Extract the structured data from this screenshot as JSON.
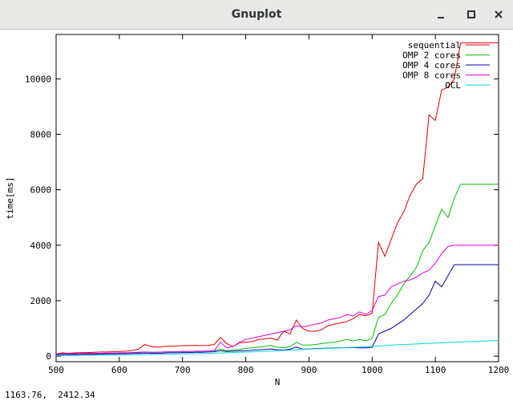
{
  "window": {
    "title": "Gnuplot",
    "controls": [
      "minimize-icon",
      "maximize-icon",
      "close-icon"
    ]
  },
  "status": {
    "coordinates": "1163.76,  2412.34"
  },
  "chart_data": {
    "type": "line",
    "title": "",
    "xlabel": "N",
    "ylabel": "time[ms]",
    "xlim": [
      500,
      1200
    ],
    "ylim": [
      -200,
      11600
    ],
    "grid": false,
    "legend_position": "top-right",
    "xticks": [
      500,
      600,
      700,
      800,
      900,
      1000,
      1100,
      1200
    ],
    "yticks": [
      0,
      2000,
      4000,
      6000,
      8000,
      10000
    ],
    "x": [
      500,
      510,
      520,
      530,
      540,
      550,
      560,
      570,
      580,
      590,
      600,
      610,
      620,
      630,
      640,
      650,
      660,
      670,
      680,
      690,
      700,
      710,
      720,
      730,
      740,
      750,
      760,
      770,
      780,
      790,
      800,
      810,
      820,
      830,
      840,
      850,
      860,
      870,
      880,
      890,
      900,
      910,
      920,
      930,
      940,
      950,
      960,
      970,
      980,
      990,
      1000,
      1010,
      1020,
      1030,
      1040,
      1050,
      1060,
      1070,
      1080,
      1090,
      1100,
      1110,
      1120,
      1130,
      1140,
      1150,
      1160,
      1170,
      1180,
      1190,
      1200
    ],
    "series": [
      {
        "name": "sequential",
        "color": "#e00000",
        "values": [
          80,
          120,
          100,
          120,
          130,
          130,
          140,
          150,
          150,
          160,
          170,
          180,
          200,
          250,
          420,
          350,
          320,
          350,
          360,
          360,
          380,
          380,
          390,
          380,
          390,
          420,
          680,
          450,
          350,
          480,
          500,
          520,
          600,
          620,
          650,
          580,
          900,
          800,
          1300,
          1000,
          900,
          900,
          950,
          1100,
          1150,
          1200,
          1250,
          1350,
          1500,
          1450,
          1550,
          4100,
          3600,
          4200,
          4800,
          5200,
          5800,
          6200,
          6400,
          8700,
          8500,
          9600,
          9700,
          10000,
          11300,
          11300,
          11300,
          11300,
          11300,
          11300,
          11300
        ]
      },
      {
        "name": "OMP 2 cores",
        "color": "#00c000",
        "values": [
          60,
          80,
          70,
          80,
          80,
          90,
          90,
          90,
          100,
          100,
          110,
          110,
          120,
          130,
          150,
          140,
          140,
          150,
          160,
          160,
          170,
          170,
          180,
          180,
          190,
          200,
          250,
          200,
          220,
          240,
          280,
          300,
          330,
          350,
          380,
          320,
          300,
          350,
          500,
          400,
          400,
          420,
          450,
          480,
          500,
          550,
          600,
          550,
          600,
          550,
          650,
          1400,
          1500,
          1900,
          2200,
          2600,
          2900,
          3200,
          3800,
          4100,
          4700,
          5300,
          5000,
          5700,
          6200,
          6200,
          6200,
          6200,
          6200,
          6200,
          6200
        ]
      },
      {
        "name": "OMP 4 cores",
        "color": "#0000b0",
        "values": [
          50,
          60,
          60,
          60,
          65,
          70,
          70,
          75,
          80,
          80,
          85,
          90,
          95,
          100,
          110,
          100,
          100,
          110,
          120,
          120,
          130,
          130,
          140,
          140,
          150,
          160,
          200,
          170,
          180,
          190,
          200,
          210,
          230,
          240,
          260,
          230,
          220,
          250,
          330,
          250,
          260,
          270,
          280,
          290,
          300,
          300,
          310,
          310,
          300,
          300,
          320,
          800,
          900,
          1000,
          1150,
          1300,
          1500,
          1700,
          1900,
          2200,
          2700,
          2500,
          2900,
          3300,
          3300,
          3300,
          3300,
          3300,
          3300,
          3300,
          3300
        ]
      },
      {
        "name": "OMP 8 cores",
        "color": "#e000e0",
        "values": [
          70,
          90,
          80,
          90,
          95,
          100,
          100,
          105,
          110,
          110,
          120,
          120,
          130,
          140,
          150,
          140,
          140,
          150,
          160,
          160,
          170,
          170,
          180,
          180,
          190,
          200,
          500,
          300,
          350,
          500,
          600,
          650,
          700,
          750,
          800,
          850,
          900,
          950,
          1100,
          1050,
          1100,
          1150,
          1200,
          1300,
          1350,
          1400,
          1500,
          1450,
          1600,
          1500,
          1650,
          2150,
          2200,
          2500,
          2600,
          2700,
          2750,
          2850,
          3000,
          3100,
          3350,
          3700,
          3950,
          4000,
          4000,
          4000,
          4000,
          4000,
          4000,
          4000,
          4000
        ]
      },
      {
        "name": "OCL",
        "color": "#00d8d8",
        "values": [
          20,
          22,
          24,
          26,
          28,
          30,
          32,
          34,
          36,
          38,
          40,
          43,
          46,
          50,
          54,
          58,
          62,
          66,
          70,
          75,
          80,
          85,
          90,
          96,
          102,
          108,
          115,
          122,
          130,
          138,
          146,
          155,
          164,
          174,
          184,
          195,
          206,
          218,
          230,
          243,
          256,
          260,
          270,
          280,
          290,
          300,
          310,
          320,
          330,
          340,
          350,
          360,
          380,
          400,
          410,
          420,
          430,
          440,
          450,
          460,
          470,
          480,
          490,
          500,
          510,
          520,
          530,
          540,
          550,
          560,
          560
        ]
      }
    ]
  }
}
